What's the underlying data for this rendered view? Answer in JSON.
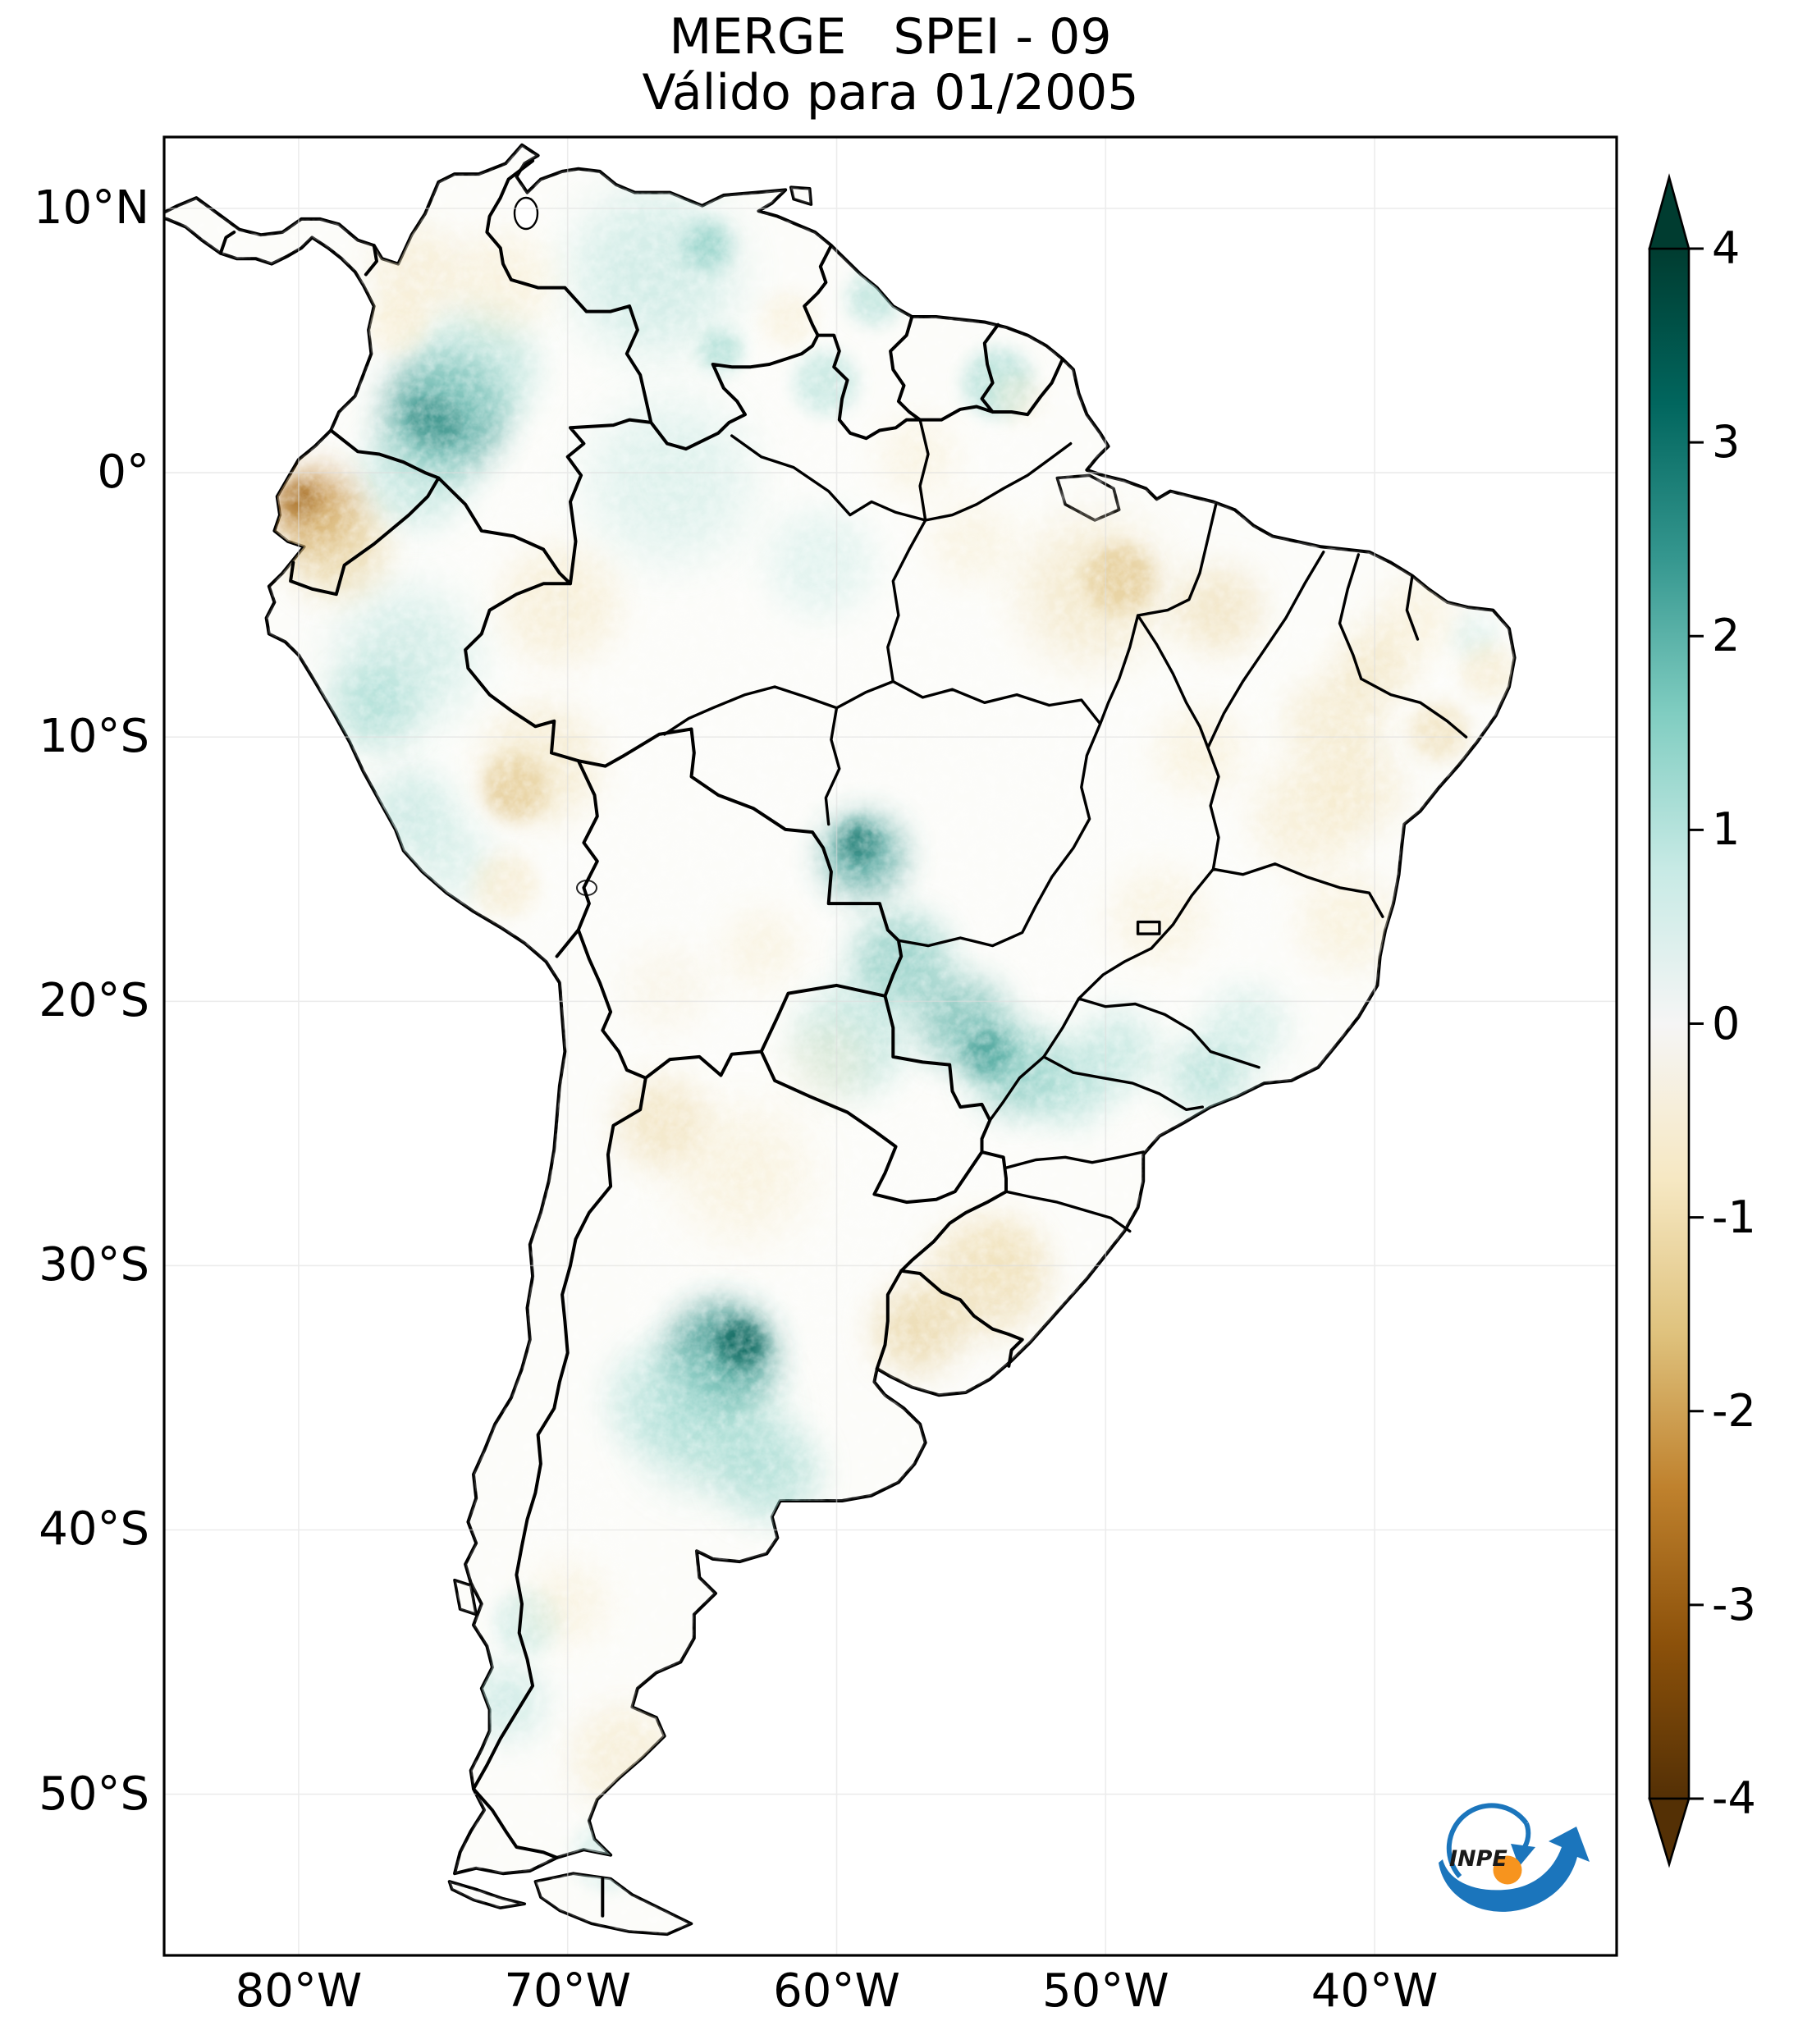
{
  "title": {
    "line1": "MERGE   SPEI - 09",
    "line2": "Válido para 01/2005"
  },
  "axes": {
    "y_tick_labels": [
      "10°N",
      "0°",
      "10°S",
      "20°S",
      "30°S",
      "40°S",
      "50°S"
    ],
    "x_tick_labels": [
      "80°W",
      "70°W",
      "60°W",
      "50°W",
      "40°W"
    ]
  },
  "colorbar": {
    "tick_labels": [
      "4",
      "3",
      "2",
      "1",
      "0",
      "-1",
      "-2",
      "-3",
      "-4"
    ],
    "colormap": "BrBG",
    "extend": "both",
    "gradient_top_to_bottom": [
      "#003c30",
      "#01665e",
      "#35978f",
      "#80cdc1",
      "#c7eae5",
      "#f5f5f5",
      "#f6e8c3",
      "#dfc27d",
      "#bf812d",
      "#8c510a",
      "#543005"
    ]
  },
  "logo": {
    "label": "INPE",
    "blue": "#1b75bc",
    "orange": "#f7941e",
    "text_color": "#1a1a1a"
  },
  "chart_data": {
    "type": "heatmap",
    "title": "MERGE   SPEI - 09",
    "subtitle": "Válido para 01/2005",
    "map_of": "South America",
    "x_axis": {
      "tick_labels": [
        "80°W",
        "70°W",
        "60°W",
        "50°W",
        "40°W"
      ],
      "range_lon": [
        -85.0,
        -31.0
      ]
    },
    "y_axis": {
      "tick_labels": [
        "10°N",
        "0°",
        "10°S",
        "20°S",
        "30°S",
        "40°S",
        "50°S"
      ],
      "range_lat": [
        12.7,
        -56.1
      ]
    },
    "colorbar": {
      "range": [
        -4,
        4
      ],
      "ticks": [
        4,
        3,
        2,
        1,
        0,
        -1,
        -2,
        -3,
        -4
      ],
      "colormap": "BrBG",
      "extend": "both"
    },
    "anomalies": [
      [
        -74.6,
        2.2,
        2.4,
        2.2
      ],
      [
        -74.9,
        1.9,
        3.0,
        1.0
      ],
      [
        -73.4,
        3.9,
        1.3,
        2.2
      ],
      [
        -75.6,
        0.0,
        1.2,
        2.0
      ],
      [
        -66.8,
        7.6,
        1.1,
        3.0
      ],
      [
        -64.8,
        8.6,
        1.7,
        0.9
      ],
      [
        -64.3,
        4.6,
        1.5,
        0.8
      ],
      [
        -60.4,
        3.4,
        1.2,
        1.2
      ],
      [
        -58.6,
        6.6,
        1.3,
        1.0
      ],
      [
        -54.0,
        3.4,
        1.4,
        1.3
      ],
      [
        -66.2,
        -0.3,
        0.9,
        3.0
      ],
      [
        -60.6,
        -3.4,
        0.8,
        2.0
      ],
      [
        -77.2,
        -8.8,
        1.5,
        1.5
      ],
      [
        -76.0,
        -7.0,
        1.1,
        2.5
      ],
      [
        -75.8,
        -12.8,
        1.1,
        1.6
      ],
      [
        -74.4,
        -14.6,
        0.9,
        1.5
      ],
      [
        -59.0,
        -14.5,
        2.4,
        1.5
      ],
      [
        -59.2,
        -14.0,
        2.9,
        0.7
      ],
      [
        -57.6,
        -18.5,
        1.8,
        1.8
      ],
      [
        -59.5,
        -21.5,
        1.3,
        2.0
      ],
      [
        -55.3,
        -20.8,
        2.0,
        1.7
      ],
      [
        -54.3,
        -22.0,
        2.6,
        0.9
      ],
      [
        -53.3,
        -22.6,
        1.8,
        1.7
      ],
      [
        -51.3,
        -23.2,
        1.4,
        1.4
      ],
      [
        -49.6,
        -21.9,
        1.2,
        1.5
      ],
      [
        -46.2,
        -22.8,
        1.4,
        1.4
      ],
      [
        -44.8,
        -21.0,
        1.0,
        1.5
      ],
      [
        -64.3,
        -33.4,
        2.6,
        2.0
      ],
      [
        -63.6,
        -33.0,
        3.4,
        0.9
      ],
      [
        -64.8,
        -35.8,
        1.6,
        2.4
      ],
      [
        -62.5,
        -37.8,
        1.4,
        1.8
      ],
      [
        -66.5,
        -35.0,
        1.1,
        2.0
      ],
      [
        -72.3,
        -46.5,
        1.1,
        1.4
      ],
      [
        -71.5,
        -43.5,
        1.0,
        1.2
      ],
      [
        -68.5,
        -52.3,
        0.9,
        1.3
      ],
      [
        -36.3,
        -6.2,
        0.7,
        0.9
      ],
      [
        -79.4,
        -1.4,
        -2.4,
        1.5
      ],
      [
        -79.9,
        -1.1,
        -2.9,
        0.7
      ],
      [
        -78.6,
        -2.8,
        -1.5,
        1.8
      ],
      [
        -75.6,
        7.6,
        -0.9,
        1.7
      ],
      [
        -72.4,
        7.2,
        -0.8,
        1.8
      ],
      [
        -76.3,
        5.6,
        -0.8,
        1.1
      ],
      [
        -70.3,
        -5.0,
        -0.9,
        2.2
      ],
      [
        -71.9,
        -11.9,
        -1.8,
        1.2
      ],
      [
        -71.0,
        -11.0,
        -1.0,
        2.2
      ],
      [
        -72.3,
        -15.6,
        -0.9,
        1.2
      ],
      [
        -49.5,
        -4.0,
        -1.8,
        1.3
      ],
      [
        -50.5,
        -4.5,
        -1.1,
        2.6
      ],
      [
        -55.0,
        -2.6,
        -0.7,
        1.5
      ],
      [
        -45.8,
        -5.2,
        -1.2,
        1.6
      ],
      [
        -41.5,
        -9.5,
        -1.0,
        1.8
      ],
      [
        -40.0,
        -7.3,
        -1.1,
        1.4
      ],
      [
        -42.5,
        -13.0,
        -0.9,
        2.0
      ],
      [
        -40.5,
        -12.0,
        -0.9,
        1.6
      ],
      [
        -37.6,
        -9.8,
        -1.2,
        1.1
      ],
      [
        -41.0,
        -17.0,
        -0.8,
        1.8
      ],
      [
        -48.0,
        -16.8,
        -0.7,
        1.8
      ],
      [
        -66.5,
        -24.6,
        -1.2,
        1.7
      ],
      [
        -63.5,
        -26.5,
        -0.8,
        2.4
      ],
      [
        -57.0,
        -32.4,
        -1.5,
        1.6
      ],
      [
        -54.5,
        -30.5,
        -1.2,
        2.2
      ],
      [
        -53.8,
        -29.8,
        -1.0,
        1.5
      ],
      [
        -67.9,
        -48.6,
        -0.9,
        1.9
      ],
      [
        -70.0,
        -42.8,
        -0.7,
        1.5
      ],
      [
        -57.0,
        0.6,
        -0.7,
        1.4
      ],
      [
        -61.8,
        5.8,
        -0.7,
        1.0
      ],
      [
        -53.2,
        2.8,
        -0.6,
        0.9
      ],
      [
        -46.5,
        -10.5,
        -0.8,
        1.6
      ],
      [
        -38.5,
        -5.5,
        -0.8,
        1.4
      ],
      [
        -35.8,
        -7.5,
        -0.9,
        1.0
      ],
      [
        -66.3,
        -19.5,
        -0.5,
        1.6
      ],
      [
        -62.8,
        -18.0,
        -0.7,
        1.4
      ],
      [
        -60.3,
        -22.3,
        -0.6,
        1.5
      ]
    ]
  }
}
